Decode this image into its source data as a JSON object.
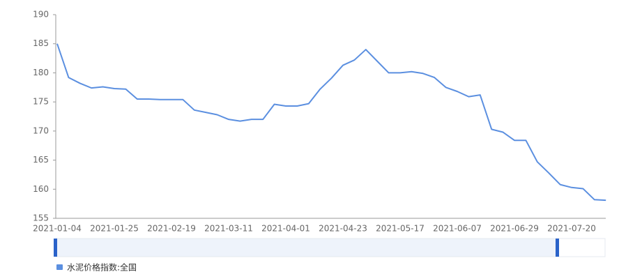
{
  "chart_data": {
    "type": "line",
    "categories": [
      "2021-01-04",
      null,
      null,
      null,
      null,
      "2021-01-25",
      null,
      null,
      null,
      null,
      "2021-02-19",
      null,
      null,
      null,
      null,
      "2021-03-11",
      null,
      null,
      null,
      null,
      "2021-04-01",
      null,
      null,
      null,
      null,
      "2021-04-23",
      null,
      null,
      null,
      null,
      "2021-05-17",
      null,
      null,
      null,
      null,
      "2021-06-07",
      null,
      null,
      null,
      null,
      "2021-06-29",
      null,
      null,
      null,
      null,
      "2021-07-20",
      null,
      null,
      null
    ],
    "series": [
      {
        "name": "水泥价格指数:全国",
        "color": "#5b8fe0",
        "values": [
          185,
          179.2,
          178.2,
          177.4,
          177.6,
          177.3,
          177.2,
          175.5,
          175.5,
          175.4,
          175.4,
          175.4,
          173.6,
          173.2,
          172.8,
          172.0,
          171.7,
          172.0,
          172.0,
          174.6,
          174.3,
          174.3,
          174.7,
          177.2,
          179.1,
          181.3,
          182.2,
          184.0,
          182.0,
          180.0,
          180.0,
          180.2,
          179.9,
          179.2,
          177.5,
          176.8,
          175.9,
          176.2,
          170.3,
          169.8,
          168.4,
          168.4,
          164.7,
          162.8,
          160.8,
          160.3,
          160.1,
          158.2,
          158.1
        ]
      }
    ],
    "ylim": [
      155,
      190
    ],
    "yticks": [
      155,
      160,
      165,
      170,
      175,
      180,
      185,
      190
    ],
    "grid": false
  }
}
